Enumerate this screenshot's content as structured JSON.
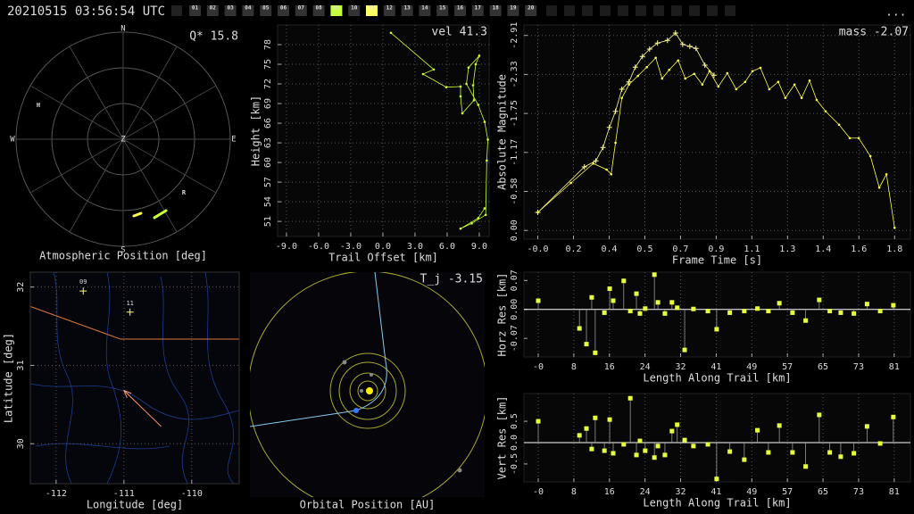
{
  "header": {
    "timestamp": "20210515 03:56:54 UTC",
    "menu": "...",
    "stations": [
      {
        "label": "01"
      },
      {
        "label": "02"
      },
      {
        "label": "03"
      },
      {
        "label": "04"
      },
      {
        "label": "05"
      },
      {
        "label": "06"
      },
      {
        "label": "07"
      },
      {
        "label": "08"
      },
      {
        "label": "09",
        "active": true,
        "color": "#c8ff3c"
      },
      {
        "label": "10"
      },
      {
        "label": "11",
        "active": true,
        "color": "#ffff66"
      },
      {
        "label": "12"
      },
      {
        "label": "13"
      },
      {
        "label": "14"
      },
      {
        "label": "15"
      },
      {
        "label": "16"
      },
      {
        "label": "17"
      },
      {
        "label": "18"
      },
      {
        "label": "19"
      },
      {
        "label": "20"
      }
    ]
  },
  "chart_data": [
    {
      "type": "polar",
      "title": "Atmospheric Position [deg]",
      "annotation": "Q* 15.8",
      "compass": [
        "N",
        "E",
        "S",
        "W"
      ],
      "center_label": "Z",
      "rlim": [
        0,
        90
      ],
      "rticks": [
        30,
        60,
        90
      ],
      "azticks": [
        0,
        30,
        60,
        90,
        120,
        150,
        180,
        210,
        240,
        270,
        300,
        330
      ],
      "stations": [
        {
          "label": "H",
          "az": 291.8,
          "zen": 76.7
        },
        {
          "label": "R",
          "az": 131.4,
          "zen": 68.0
        }
      ],
      "series": [
        {
          "color": "#ffff4d",
          "az": [
            172.1,
            166.5
          ],
          "zen": [
            65.1,
            64.0
          ]
        },
        {
          "color": "#ccff33",
          "az": [
            158.3,
            149
          ],
          "zen": [
            71.0,
            70.0
          ]
        }
      ]
    },
    {
      "type": "line",
      "annotation": "vel 41.3",
      "xlabel": "Trail Offset [km]",
      "ylabel": "Height [km]",
      "xlim": [
        -9.83,
        9.92
      ],
      "ylim": [
        48.7,
        81.0
      ],
      "xticks": [
        {
          "value": -9,
          "label": "-9.0"
        },
        {
          "value": -6,
          "label": "-6.0"
        },
        {
          "value": -3,
          "label": "-3.0"
        },
        {
          "value": 0,
          "label": "0.0"
        },
        {
          "value": 3,
          "label": "3.0"
        },
        {
          "value": 6,
          "label": "6.0"
        },
        {
          "value": 9,
          "label": "9.0"
        }
      ],
      "yticks": [
        51,
        54,
        57,
        60,
        63,
        66,
        69,
        72,
        75,
        78
      ],
      "grid": true,
      "series": [
        {
          "color": "#ccff33",
          "marker": "dot",
          "x": [
            0.75,
            4.75,
            3.75,
            5.92,
            7.25,
            7.25,
            7.42,
            8.5,
            8.42,
            8.67,
            9.0,
            8.0,
            7.8,
            8.9,
            9.5,
            9.8,
            9.7,
            9.6,
            8.3,
            7.25,
            8.9,
            9.5
          ],
          "values": [
            79.8,
            74.2,
            73.5,
            71.5,
            71.6,
            70.1,
            67.5,
            69.5,
            71.8,
            75.0,
            76.3,
            74.5,
            72.0,
            68.8,
            66.2,
            63.5,
            60.3,
            52.0,
            50.7,
            49.9,
            51.5,
            53.0
          ]
        }
      ]
    },
    {
      "type": "line",
      "annotation": "mass -2.07",
      "xlabel": "Frame Time [s]",
      "ylabel": "Absolute Magnitude",
      "xlim": [
        -0.07,
        1.88
      ],
      "ylim": [
        0.13,
        -3.07
      ],
      "xticks": [
        {
          "value": 0,
          "label": "-0.0"
        },
        {
          "value": 0.18,
          "label": "0.2"
        },
        {
          "value": 0.36,
          "label": "0.4"
        },
        {
          "value": 0.54,
          "label": "0.5"
        },
        {
          "value": 0.72,
          "label": "0.7"
        },
        0.9,
        {
          "value": 1.08,
          "label": "1.1"
        },
        {
          "value": 1.26,
          "label": "1.3"
        },
        {
          "value": 1.44,
          "label": "1.4"
        },
        {
          "value": 1.62,
          "label": "1.6"
        },
        1.8
      ],
      "yticks": [
        {
          "value": -2.914,
          "label": "-2.91"
        },
        {
          "value": -2.331,
          "label": "-2.33"
        },
        {
          "value": -1.748,
          "label": "-1.75"
        },
        {
          "value": -1.166,
          "label": "-1.17"
        },
        {
          "value": -0.583,
          "label": "-0.58"
        },
        {
          "value": 0,
          "label": "0.00"
        }
      ],
      "grid": true,
      "series": [
        {
          "color": "#ffff99",
          "marker": "plus",
          "x": [
            0.0,
            0.235,
            0.293,
            0.329,
            0.361,
            0.392,
            0.424,
            0.46,
            0.492,
            0.528,
            0.564,
            0.604,
            0.654,
            0.695,
            0.731,
            0.767,
            0.798,
            0.843,
            0.889
          ],
          "values": [
            -0.27,
            -0.95,
            -1.04,
            -1.24,
            -1.54,
            -1.78,
            -2.11,
            -2.22,
            -2.44,
            -2.6,
            -2.71,
            -2.8,
            -2.84,
            -2.95,
            -2.78,
            -2.75,
            -2.72,
            -2.47,
            -2.32
          ]
        },
        {
          "color": "#ffff4d",
          "marker": "dot",
          "x": [
            0.0,
            0.167,
            0.28,
            0.347,
            0.37,
            0.392,
            0.424,
            0.46,
            0.505,
            0.55,
            0.595,
            0.627,
            0.663,
            0.708,
            0.744,
            0.789,
            0.83,
            0.866,
            0.911,
            0.956,
            1.001,
            1.046,
            1.083,
            1.123,
            1.168,
            1.213,
            1.249,
            1.295,
            1.331,
            1.371,
            1.407,
            1.452,
            1.52,
            1.574,
            1.619,
            1.678,
            1.723,
            1.759,
            1.8
          ],
          "values": [
            -0.27,
            -0.71,
            -1.0,
            -0.91,
            -0.84,
            -1.31,
            -1.98,
            -2.18,
            -2.31,
            -2.44,
            -2.58,
            -2.27,
            -2.4,
            -2.54,
            -2.27,
            -2.34,
            -2.18,
            -2.38,
            -2.15,
            -2.35,
            -2.11,
            -2.22,
            -2.38,
            -2.43,
            -2.11,
            -2.22,
            -1.98,
            -2.18,
            -1.98,
            -2.24,
            -1.95,
            -1.78,
            -1.58,
            -1.38,
            -1.38,
            -1.11,
            -0.64,
            -0.84,
            -0.04
          ]
        }
      ]
    },
    {
      "type": "stem",
      "xlabel": "Length Along Trail [km]",
      "ylabel": "Horz Res [km]",
      "xlim": [
        -3.26,
        84.9
      ],
      "ylim": [
        -0.115,
        0.09
      ],
      "xticks": [
        {
          "value": 0,
          "label": "-0"
        },
        {
          "value": 8.12,
          "label": "8"
        },
        {
          "value": 16.24,
          "label": "16"
        },
        {
          "value": 24.36,
          "label": "24"
        },
        {
          "value": 32.48,
          "label": "32"
        },
        {
          "value": 40.6,
          "label": "41"
        },
        {
          "value": 48.72,
          "label": "49"
        },
        {
          "value": 56.84,
          "label": "57"
        },
        {
          "value": 64.96,
          "label": "65"
        },
        {
          "value": 73.08,
          "label": "73"
        },
        {
          "value": 81.2,
          "label": "81"
        }
      ],
      "yticks": [
        0.07,
        {
          "value": 0,
          "label": "0.00"
        },
        -0.07
      ],
      "grid": true,
      "series": [
        {
          "color": "#e8ff40",
          "x": [
            0,
            9.4,
            11.0,
            12.2,
            13.0,
            15.1,
            16.3,
            17.1,
            19.5,
            21.0,
            22.4,
            23.2,
            24.4,
            26.5,
            27.3,
            28.9,
            30.5,
            31.7,
            33.4,
            35.4,
            38.7,
            40.7,
            43.7,
            47.0,
            50.0,
            52.5,
            55.0,
            58.0,
            61.0,
            64.1,
            66.5,
            69.0,
            72.0,
            75.0,
            78.0,
            81.0
          ],
          "values": [
            0.021,
            -0.046,
            -0.084,
            0.029,
            -0.105,
            -0.008,
            0.05,
            0.021,
            0.069,
            -0.004,
            0.038,
            -0.01,
            0.002,
            0.084,
            0.017,
            -0.01,
            0.017,
            0.004,
            -0.098,
            0.001,
            -0.004,
            -0.048,
            -0.008,
            -0.004,
            0.002,
            -0.004,
            0.015,
            -0.008,
            -0.027,
            0.023,
            -0.004,
            -0.008,
            -0.01,
            0.013,
            -0.004,
            0.01
          ]
        }
      ]
    },
    {
      "type": "stem",
      "xlabel": "Length Along Trail [km]",
      "ylabel": "Vert Res [km]",
      "xlim": [
        -3.26,
        84.9
      ],
      "ylim": [
        -0.92,
        1.15
      ],
      "xticks": [
        {
          "value": 0,
          "label": "-0"
        },
        {
          "value": 8.12,
          "label": "8"
        },
        {
          "value": 16.24,
          "label": "16"
        },
        {
          "value": 24.36,
          "label": "24"
        },
        {
          "value": 32.48,
          "label": "32"
        },
        {
          "value": 40.6,
          "label": "41"
        },
        {
          "value": 48.72,
          "label": "49"
        },
        {
          "value": 56.84,
          "label": "57"
        },
        {
          "value": 64.96,
          "label": "65"
        },
        {
          "value": 73.08,
          "label": "73"
        },
        {
          "value": 81.2,
          "label": "81"
        }
      ],
      "yticks": [
        0.5,
        {
          "value": 0,
          "label": "0.0"
        },
        -0.5
      ],
      "grid": true,
      "series": [
        {
          "color": "#e8ff40",
          "x": [
            0,
            9.4,
            11.0,
            12.2,
            13.0,
            15.1,
            16.3,
            17.1,
            19.5,
            21.0,
            22.4,
            23.2,
            24.4,
            26.5,
            27.3,
            28.9,
            30.5,
            31.7,
            33.4,
            35.4,
            38.7,
            40.7,
            43.7,
            47.0,
            50.0,
            52.5,
            55.0,
            58.0,
            61.0,
            64.1,
            66.5,
            69.0,
            72.0,
            75.0,
            78.0,
            81.0
          ],
          "values": [
            0.5,
            0.17,
            0.33,
            -0.15,
            0.58,
            -0.19,
            0.54,
            -0.25,
            -0.04,
            1.04,
            -0.29,
            0.04,
            -0.19,
            -0.35,
            -0.08,
            -0.29,
            0.27,
            0.42,
            0.06,
            -0.08,
            -0.04,
            -0.85,
            -0.21,
            -0.4,
            0.29,
            -0.23,
            0.4,
            -0.23,
            -0.56,
            0.65,
            -0.23,
            -0.33,
            -0.25,
            0.38,
            -0.02,
            0.6
          ]
        }
      ]
    },
    {
      "type": "map",
      "xlabel": "Longitude [deg]",
      "ylabel": "Latitude [deg]",
      "xlim": [
        -112.38,
        -109.3
      ],
      "ylim": [
        29.49,
        32.19
      ],
      "xticks": [
        -112,
        -111,
        -110
      ],
      "yticks": [
        30,
        31,
        32
      ],
      "grid": true,
      "stations": [
        {
          "label": "09",
          "lon": -111.6,
          "lat": 31.95
        },
        {
          "label": "11",
          "lon": -110.91,
          "lat": 31.68
        }
      ],
      "trajectory": {
        "color": "#ff9966",
        "lon": [
          -110.45,
          -111.0
        ],
        "lat": [
          30.22,
          30.68
        ]
      }
    },
    {
      "type": "orbit",
      "title": "Orbital Position [AU]",
      "annotation": "T_j -3.15"
    }
  ]
}
